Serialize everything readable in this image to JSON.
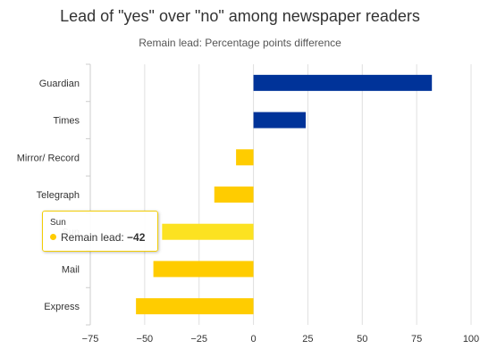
{
  "chart_data": {
    "type": "bar",
    "orientation": "horizontal",
    "title": "Lead of \"yes\" over \"no\" among newspaper readers",
    "subtitle": "Remain lead: Percentage points difference",
    "xlabel": "",
    "ylabel": "",
    "categories": [
      "Guardian",
      "Times",
      "Mirror/ Record",
      "Telegraph",
      "Sun",
      "Mail",
      "Express"
    ],
    "series": [
      {
        "name": "Remain lead",
        "values": [
          82,
          24,
          -8,
          -18,
          -42,
          -46,
          -54
        ]
      }
    ],
    "xlim": [
      -75,
      100
    ],
    "xticks": [
      -75,
      -50,
      -25,
      0,
      25,
      50,
      75,
      100
    ],
    "tick_labels": [
      "−75",
      "−50",
      "−25",
      "0",
      "25",
      "50",
      "75",
      "100"
    ],
    "grid": true,
    "legend": "none",
    "colors": {
      "positive": "#003399",
      "negative": "#ffcc00",
      "hover": "#fce221",
      "grid": "#e0e0e0",
      "axis": "#cccccc"
    }
  },
  "tooltip": {
    "category": "Sun",
    "series_label": "Remain lead: ",
    "value": "−42"
  }
}
